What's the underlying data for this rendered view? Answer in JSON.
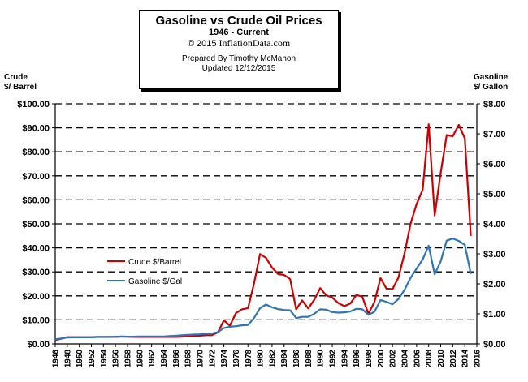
{
  "header": {
    "title": "Gasoline vs Crude Oil Prices",
    "subtitle": "1946 - Current",
    "copyright_prefix": "© 2015",
    "site": "InflationData.com",
    "prepared_by": "Prepared  By Timothy McMahon",
    "updated": "Updated   12/12/2015"
  },
  "left_axis_title": [
    "Crude",
    "$/ Barrel"
  ],
  "right_axis_title": [
    "Gasoline",
    "$/ Gallon"
  ],
  "colors": {
    "crude": "#cc0000",
    "gasoline": "#2e75b6",
    "grid": "#000000"
  },
  "chart_data": {
    "type": "line",
    "x": [
      1946,
      1947,
      1948,
      1949,
      1950,
      1951,
      1952,
      1953,
      1954,
      1955,
      1956,
      1957,
      1958,
      1959,
      1960,
      1961,
      1962,
      1963,
      1964,
      1965,
      1966,
      1967,
      1968,
      1969,
      1970,
      1971,
      1972,
      1973,
      1974,
      1975,
      1976,
      1977,
      1978,
      1979,
      1980,
      1981,
      1982,
      1983,
      1984,
      1985,
      1986,
      1987,
      1988,
      1989,
      1990,
      1991,
      1992,
      1993,
      1994,
      1995,
      1996,
      1997,
      1998,
      1999,
      2000,
      2001,
      2002,
      2003,
      2004,
      2005,
      2006,
      2007,
      2008,
      2009,
      2010,
      2011,
      2012,
      2013,
      2014,
      2015
    ],
    "series": [
      {
        "name": "Crude $/Barrel",
        "axis": "left",
        "values": [
          1.6,
          2.2,
          2.8,
          2.8,
          2.8,
          2.8,
          2.8,
          2.9,
          2.9,
          2.9,
          2.9,
          3.1,
          3.0,
          2.9,
          2.9,
          2.9,
          2.9,
          2.9,
          2.9,
          2.9,
          2.9,
          3.0,
          3.2,
          3.3,
          3.4,
          3.6,
          3.6,
          4.8,
          9.8,
          7.6,
          12.8,
          14.4,
          14.9,
          25.1,
          37.4,
          35.8,
          31.8,
          29.1,
          28.7,
          27.0,
          14.4,
          18.1,
          14.8,
          18.3,
          23.2,
          20.2,
          19.3,
          17.0,
          15.7,
          16.8,
          20.4,
          19.6,
          12.5,
          17.5,
          27.4,
          23.0,
          22.8,
          27.7,
          37.7,
          50.0,
          58.3,
          64.2,
          91.5,
          53.5,
          71.2,
          87.0,
          86.5,
          91.2,
          85.6,
          45.0
        ]
      },
      {
        "name": "Gasoline $/Gal",
        "axis": "right",
        "values": [
          0.15,
          0.18,
          0.21,
          0.22,
          0.22,
          0.22,
          0.22,
          0.23,
          0.23,
          0.23,
          0.24,
          0.24,
          0.24,
          0.24,
          0.25,
          0.25,
          0.25,
          0.25,
          0.25,
          0.26,
          0.27,
          0.29,
          0.3,
          0.31,
          0.32,
          0.34,
          0.35,
          0.39,
          0.53,
          0.57,
          0.59,
          0.62,
          0.63,
          0.86,
          1.19,
          1.31,
          1.22,
          1.16,
          1.13,
          1.12,
          0.86,
          0.9,
          0.9,
          1.0,
          1.15,
          1.14,
          1.06,
          1.04,
          1.05,
          1.08,
          1.17,
          1.15,
          0.97,
          1.07,
          1.46,
          1.4,
          1.32,
          1.5,
          1.8,
          2.2,
          2.51,
          2.81,
          3.27,
          2.32,
          2.75,
          3.44,
          3.51,
          3.43,
          3.3,
          2.33
        ]
      }
    ],
    "legend": [
      {
        "label": "Crude $/Barrel",
        "color": "#cc0000"
      },
      {
        "label": "Gasoline $/Gal",
        "color": "#2e75b6"
      }
    ],
    "left_axis": {
      "label": "Crude $/ Barrel",
      "ylim": [
        0,
        100
      ],
      "step": 10,
      "prefix": "$",
      "decimals": 2
    },
    "right_axis": {
      "label": "Gasoline $/ Gallon",
      "ylim": [
        0,
        8
      ],
      "step": 1,
      "prefix": "$",
      "decimals": 2
    },
    "x_ticks": [
      1946,
      1948,
      1950,
      1952,
      1954,
      1956,
      1958,
      1960,
      1962,
      1964,
      1966,
      1968,
      1970,
      1972,
      1974,
      1976,
      1978,
      1980,
      1982,
      1984,
      1986,
      1988,
      1990,
      1992,
      1994,
      1996,
      1998,
      2000,
      2002,
      2004,
      2006,
      2008,
      2010,
      2012,
      2014,
      2016
    ],
    "xlim": [
      1946,
      2016
    ],
    "grid": "horizontal dashed",
    "legend_position": "inside left"
  }
}
